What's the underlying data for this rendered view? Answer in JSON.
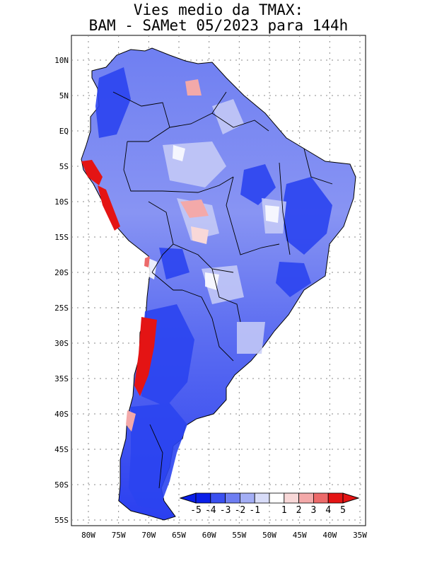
{
  "title": {
    "line1": "Vies medio da TMAX:",
    "line2": "BAM - SAMet 05/2023  para 144h"
  },
  "map": {
    "region": "South America",
    "lat_labels": [
      "10N",
      "5N",
      "EQ",
      "5S",
      "10S",
      "15S",
      "20S",
      "25S",
      "30S",
      "35S",
      "40S",
      "45S",
      "50S",
      "55S"
    ],
    "lon_labels": [
      "80W",
      "75W",
      "70W",
      "65W",
      "60W",
      "55W",
      "50W",
      "45W",
      "40W",
      "35W"
    ]
  },
  "colorbar": {
    "labels": [
      "-5",
      "-4",
      "-3",
      "-2",
      "-1",
      "1",
      "2",
      "3",
      "4",
      "5"
    ],
    "colors": [
      "#0a1fe8",
      "#3a50f0",
      "#6e7ef2",
      "#a3aef5",
      "#d8dcf8",
      "#ffffff",
      "#f8d8d8",
      "#f3a9a9",
      "#ec6a6a",
      "#e41414"
    ]
  }
}
